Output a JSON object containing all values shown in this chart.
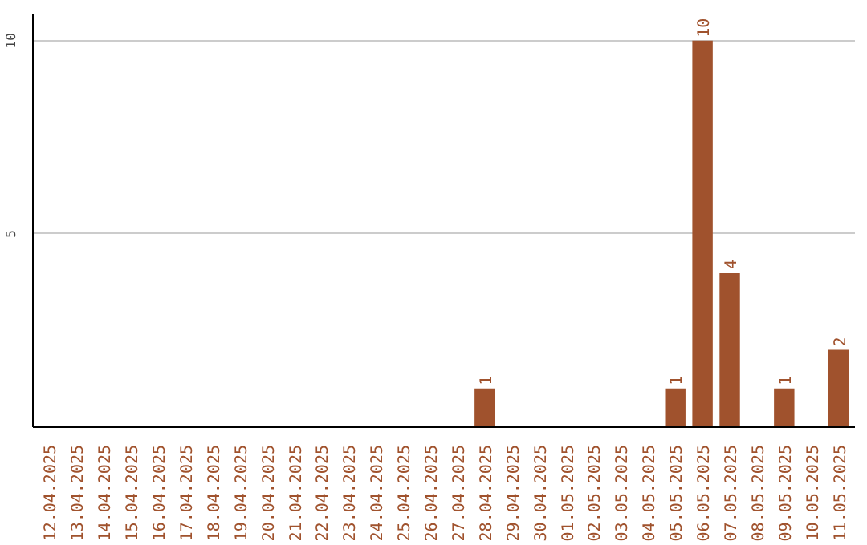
{
  "chart_data": {
    "type": "bar",
    "categories": [
      "12.04.2025",
      "13.04.2025",
      "14.04.2025",
      "15.04.2025",
      "16.04.2025",
      "17.04.2025",
      "18.04.2025",
      "19.04.2025",
      "20.04.2025",
      "21.04.2025",
      "22.04.2025",
      "23.04.2025",
      "24.04.2025",
      "25.04.2025",
      "26.04.2025",
      "27.04.2025",
      "28.04.2025",
      "29.04.2025",
      "30.04.2025",
      "01.05.2025",
      "02.05.2025",
      "03.05.2025",
      "04.05.2025",
      "05.05.2025",
      "06.05.2025",
      "07.05.2025",
      "08.05.2025",
      "09.05.2025",
      "10.05.2025",
      "11.05.2025"
    ],
    "values": [
      0,
      0,
      0,
      0,
      0,
      0,
      0,
      0,
      0,
      0,
      0,
      0,
      0,
      0,
      0,
      0,
      1,
      0,
      0,
      0,
      0,
      0,
      0,
      1,
      10,
      4,
      0,
      1,
      0,
      2
    ],
    "value_labels": [
      null,
      null,
      null,
      null,
      null,
      null,
      null,
      null,
      null,
      null,
      null,
      null,
      null,
      null,
      null,
      null,
      "1",
      null,
      null,
      null,
      null,
      null,
      null,
      "1",
      "10",
      "4",
      null,
      "1",
      null,
      "2"
    ],
    "color": "#a0522d",
    "ylim": [
      0,
      10.7
    ],
    "yticks": [
      5,
      10
    ],
    "grid": "y"
  }
}
